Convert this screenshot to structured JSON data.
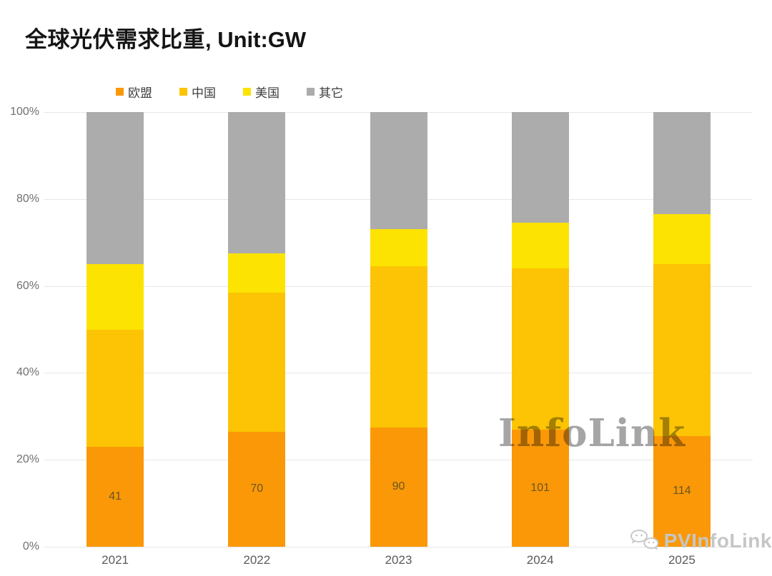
{
  "header": {
    "title_main": "全球光伏需求比重",
    "title_suffix": ", Unit:GW"
  },
  "chart_data": {
    "type": "bar",
    "subtype": "100-percent-stacked-column",
    "title": "全球光伏需求比重",
    "unit": "GW",
    "categories": [
      "2021",
      "2022",
      "2023",
      "2024",
      "2025"
    ],
    "series": [
      {
        "name": "欧盟",
        "color": "#FA9808",
        "values_pct": [
          23,
          26.5,
          27.5,
          27,
          25.5
        ]
      },
      {
        "name": "中国",
        "color": "#FCC404",
        "values_pct": [
          27,
          32,
          37,
          37,
          39.5
        ]
      },
      {
        "name": "美国",
        "color": "#FCE302",
        "values_pct": [
          15,
          9,
          8.5,
          10.5,
          11.5
        ]
      },
      {
        "name": "其它",
        "color": "#ACACAC",
        "values_pct": [
          35,
          32.5,
          27,
          25.5,
          23.5
        ]
      }
    ],
    "bar_value_labels": [
      41,
      70,
      90,
      101,
      114
    ],
    "bar_value_labels_series": "欧盟",
    "y_ticks": [
      "100%",
      "80%",
      "60%",
      "40%",
      "20%",
      "0%"
    ],
    "ylim": [
      0,
      100
    ],
    "grid": true,
    "legend_position": "top"
  },
  "watermark": {
    "text": "InfoLink"
  },
  "footer_logo": {
    "text": "PVInfoLink",
    "icon": "wechat-icon"
  }
}
